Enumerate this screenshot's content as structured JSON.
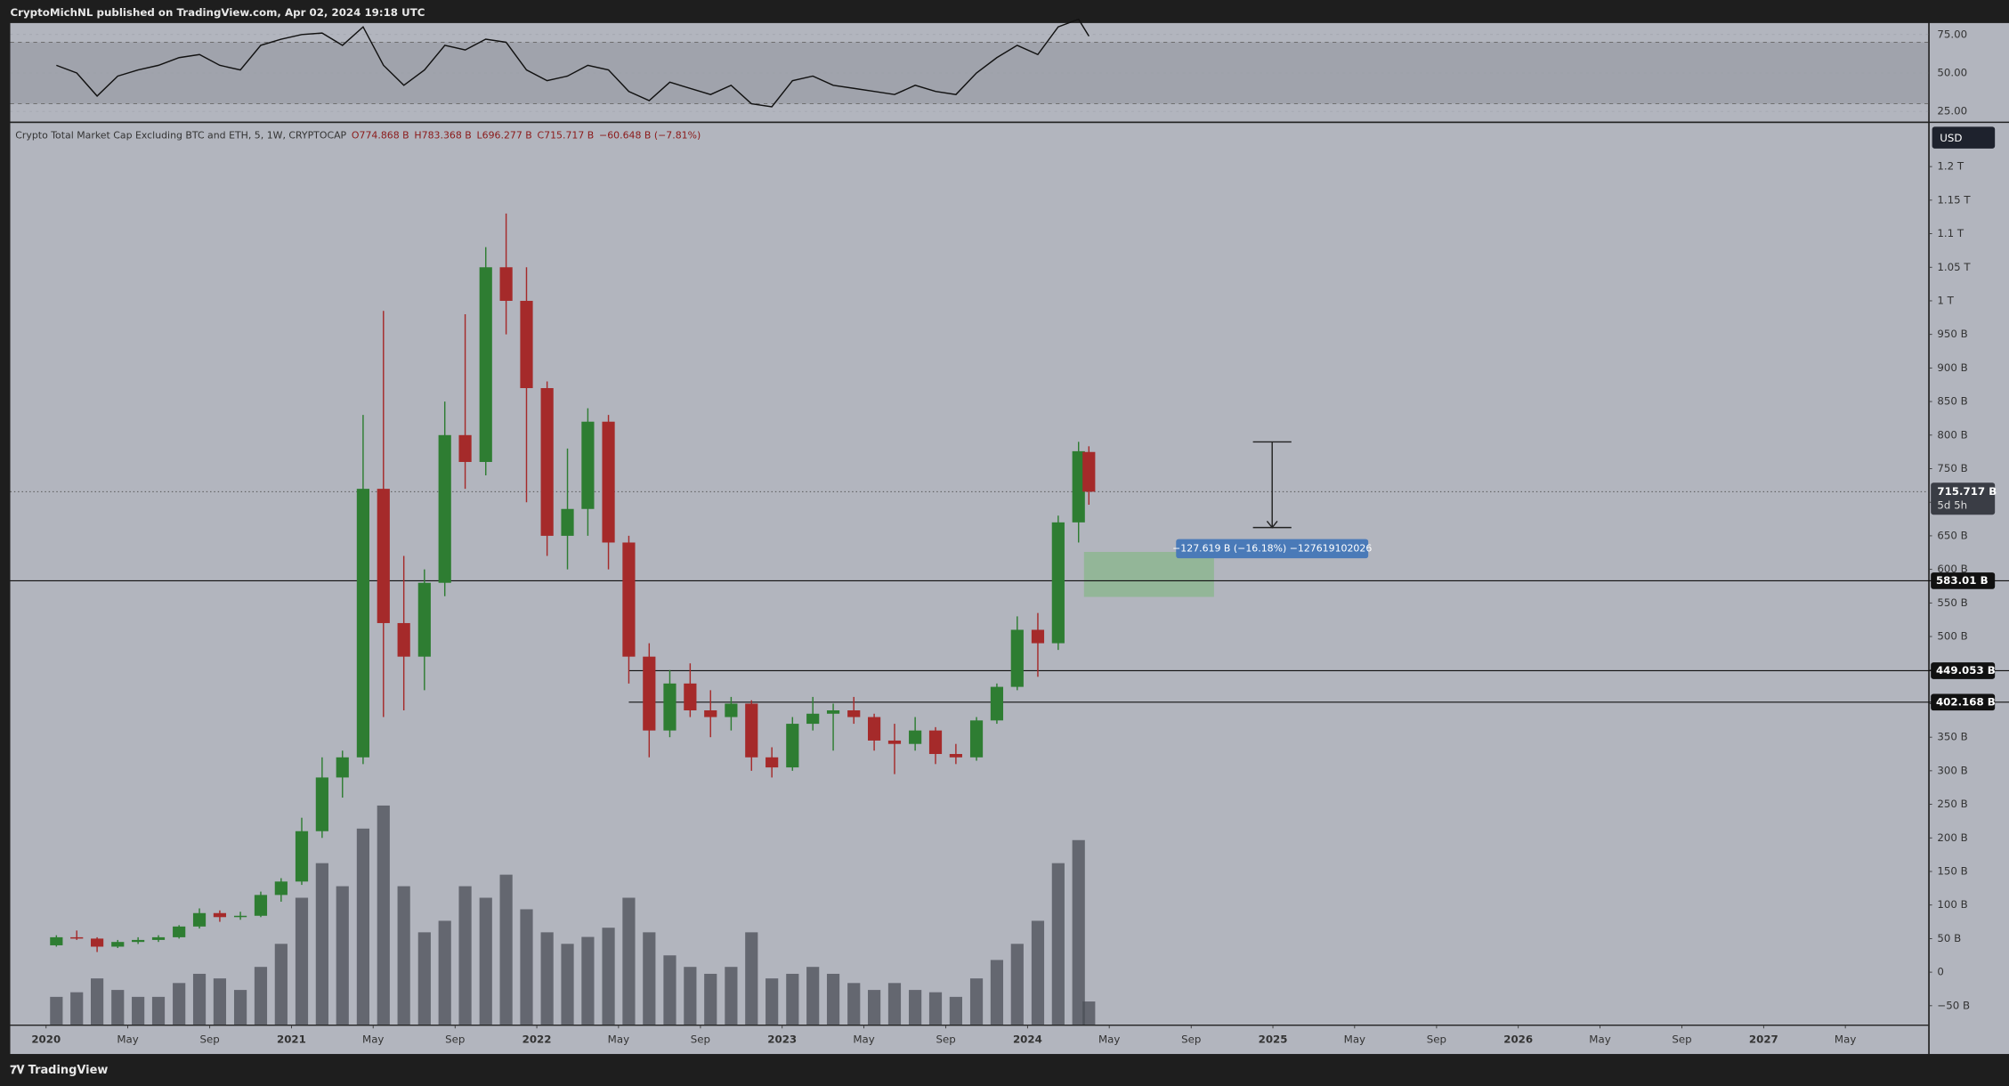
{
  "header": {
    "publisher": "CryptoMichNL published on TradingView.com, Apr 02, 2024 19:18 UTC",
    "brand": "TradingView",
    "currency": "USD"
  },
  "chart_data": [
    {
      "type": "line",
      "name": "RSI",
      "color": "#111111",
      "x": [
        2020.042,
        2020.125,
        2020.208,
        2020.292,
        2020.375,
        2020.458,
        2020.542,
        2020.625,
        2020.708,
        2020.792,
        2020.875,
        2020.958,
        2021.042,
        2021.125,
        2021.208,
        2021.292,
        2021.375,
        2021.458,
        2021.542,
        2021.625,
        2021.708,
        2021.792,
        2021.875,
        2021.958,
        2022.042,
        2022.125,
        2022.208,
        2022.292,
        2022.375,
        2022.458,
        2022.542,
        2022.625,
        2022.708,
        2022.792,
        2022.875,
        2022.958,
        2023.042,
        2023.125,
        2023.208,
        2023.292,
        2023.375,
        2023.458,
        2023.542,
        2023.625,
        2023.708,
        2023.792,
        2023.875,
        2023.958,
        2024.042,
        2024.125,
        2024.208,
        2024.25
      ],
      "values": [
        55,
        50,
        35,
        48,
        52,
        55,
        60,
        62,
        55,
        52,
        68,
        72,
        75,
        76,
        68,
        80,
        55,
        42,
        52,
        68,
        65,
        72,
        70,
        52,
        45,
        48,
        55,
        52,
        38,
        32,
        44,
        40,
        36,
        42,
        30,
        28,
        45,
        48,
        42,
        40,
        38,
        36,
        42,
        38,
        36,
        50,
        60,
        68,
        62,
        80,
        85,
        74
      ],
      "band": [
        30,
        70
      ],
      "xlim": [
        2019.854,
        2027.671
      ],
      "ylim": [
        18.3,
        82.5
      ],
      "yticks": [
        {
          "value": 25,
          "label": "25.00"
        },
        {
          "value": 50,
          "label": "50.00"
        },
        {
          "value": 75,
          "label": "75.00"
        }
      ]
    },
    {
      "type": "candlestick",
      "title": "Crypto Total Market Cap Excluding BTC and ETH, 5, 1W, CRYPTOCAP",
      "ohlc_header": [
        "O774.868 B",
        "H783.368 B",
        "L696.277 B",
        "C715.717 B",
        "−60.648 B (−7.81%)"
      ],
      "up_color": "#2e7d32",
      "down_color": "#a52a2a",
      "x": [
        2020.042,
        2020.125,
        2020.208,
        2020.292,
        2020.375,
        2020.458,
        2020.542,
        2020.625,
        2020.708,
        2020.792,
        2020.875,
        2020.958,
        2021.042,
        2021.125,
        2021.208,
        2021.292,
        2021.375,
        2021.458,
        2021.542,
        2021.625,
        2021.708,
        2021.792,
        2021.875,
        2021.958,
        2022.042,
        2022.125,
        2022.208,
        2022.292,
        2022.375,
        2022.458,
        2022.542,
        2022.625,
        2022.708,
        2022.792,
        2022.875,
        2022.958,
        2023.042,
        2023.125,
        2023.208,
        2023.292,
        2023.375,
        2023.458,
        2023.542,
        2023.625,
        2023.708,
        2023.792,
        2023.875,
        2023.958,
        2024.042,
        2024.125,
        2024.208,
        2024.25
      ],
      "open": [
        40,
        52,
        50,
        38,
        45,
        48,
        52,
        68,
        88,
        82,
        84,
        115,
        135,
        210,
        290,
        320,
        720,
        520,
        470,
        580,
        800,
        760,
        1050,
        1000,
        870,
        650,
        690,
        820,
        640,
        470,
        360,
        430,
        390,
        380,
        400,
        320,
        305,
        370,
        385,
        390,
        380,
        345,
        340,
        360,
        325,
        320,
        375,
        425,
        510,
        490,
        670,
        774.868
      ],
      "high": [
        55,
        62,
        52,
        48,
        52,
        55,
        70,
        95,
        92,
        90,
        120,
        140,
        230,
        320,
        330,
        830,
        985,
        620,
        600,
        850,
        980,
        1080,
        1130,
        1050,
        880,
        780,
        840,
        830,
        650,
        490,
        450,
        460,
        420,
        410,
        405,
        335,
        380,
        410,
        400,
        410,
        385,
        370,
        380,
        365,
        340,
        380,
        430,
        530,
        535,
        680,
        790,
        783.368
      ],
      "low": [
        38,
        48,
        30,
        36,
        42,
        45,
        50,
        65,
        75,
        78,
        82,
        105,
        130,
        200,
        260,
        310,
        380,
        390,
        420,
        560,
        720,
        740,
        950,
        700,
        620,
        600,
        650,
        600,
        430,
        320,
        350,
        380,
        350,
        360,
        300,
        290,
        300,
        360,
        330,
        370,
        330,
        295,
        330,
        310,
        310,
        315,
        370,
        420,
        440,
        480,
        640,
        696.277
      ],
      "close": [
        52,
        50,
        38,
        45,
        48,
        52,
        68,
        88,
        82,
        84,
        115,
        135,
        210,
        290,
        320,
        720,
        520,
        470,
        580,
        800,
        760,
        1050,
        1000,
        870,
        650,
        690,
        820,
        640,
        470,
        360,
        430,
        390,
        380,
        400,
        320,
        305,
        370,
        385,
        390,
        380,
        345,
        340,
        360,
        325,
        320,
        375,
        425,
        510,
        490,
        670,
        776,
        715.717
      ],
      "volume": [
        12,
        14,
        20,
        15,
        12,
        12,
        18,
        22,
        20,
        15,
        25,
        35,
        55,
        70,
        60,
        85,
        95,
        60,
        40,
        45,
        60,
        55,
        65,
        50,
        40,
        35,
        38,
        42,
        55,
        40,
        30,
        25,
        22,
        25,
        40,
        20,
        22,
        25,
        22,
        18,
        15,
        18,
        15,
        14,
        12,
        20,
        28,
        35,
        45,
        70,
        80,
        10
      ],
      "volume_ylim": [
        0,
        100
      ],
      "volume_color": "#4a4d55",
      "xlim": [
        2019.854,
        2027.671
      ],
      "ylim": [
        -78,
        1265
      ],
      "xticks": [
        {
          "value": 2020,
          "label": "2020"
        },
        {
          "value": 2020.333,
          "label": "May"
        },
        {
          "value": 2020.667,
          "label": "Sep"
        },
        {
          "value": 2021,
          "label": "2021"
        },
        {
          "value": 2021.333,
          "label": "May"
        },
        {
          "value": 2021.667,
          "label": "Sep"
        },
        {
          "value": 2022,
          "label": "2022"
        },
        {
          "value": 2022.333,
          "label": "May"
        },
        {
          "value": 2022.667,
          "label": "Sep"
        },
        {
          "value": 2023,
          "label": "2023"
        },
        {
          "value": 2023.333,
          "label": "May"
        },
        {
          "value": 2023.667,
          "label": "Sep"
        },
        {
          "value": 2024,
          "label": "2024"
        },
        {
          "value": 2024.333,
          "label": "May"
        },
        {
          "value": 2024.667,
          "label": "Sep"
        },
        {
          "value": 2025,
          "label": "2025"
        },
        {
          "value": 2025.333,
          "label": "May"
        },
        {
          "value": 2025.667,
          "label": "Sep"
        },
        {
          "value": 2026,
          "label": "2026"
        },
        {
          "value": 2026.333,
          "label": "May"
        },
        {
          "value": 2026.667,
          "label": "Sep"
        },
        {
          "value": 2027,
          "label": "2027"
        },
        {
          "value": 2027.333,
          "label": "May"
        }
      ],
      "yticks": [
        {
          "value": -50,
          "label": "−50 B"
        },
        0,
        {
          "value": 50,
          "label": "50 B"
        },
        {
          "value": 100,
          "label": "100 B"
        },
        {
          "value": 150,
          "label": "150 B"
        },
        {
          "value": 200,
          "label": "200 B"
        },
        {
          "value": 250,
          "label": "250 B"
        },
        {
          "value": 300,
          "label": "300 B"
        },
        {
          "value": 350,
          "label": "350 B"
        },
        {
          "value": 400,
          "label": "400 B"
        },
        {
          "value": 450,
          "label": "450 B"
        },
        {
          "value": 500,
          "label": "500 B"
        },
        {
          "value": 550,
          "label": "550 B"
        },
        {
          "value": 600,
          "label": "600 B"
        },
        {
          "value": 650,
          "label": "650 B"
        },
        {
          "value": 700,
          "label": "700 B"
        },
        {
          "value": 750,
          "label": "750 B"
        },
        {
          "value": 800,
          "label": "800 B"
        },
        {
          "value": 850,
          "label": "850 B"
        },
        {
          "value": 900,
          "label": "900 B"
        },
        {
          "value": 950,
          "label": "950 B"
        },
        {
          "value": 1000,
          "label": "1 T"
        },
        {
          "value": 1050,
          "label": "1.05 T"
        },
        {
          "value": 1100,
          "label": "1.1 T"
        },
        {
          "value": 1150,
          "label": "1.15 T"
        },
        {
          "value": 1200,
          "label": "1.2 T"
        }
      ],
      "levels": [
        {
          "value": 583.01,
          "label": "583.01 B"
        },
        {
          "value": 449.053,
          "label": "449.053 B"
        },
        {
          "value": 402.168,
          "label": "402.168 B"
        }
      ],
      "last_price": {
        "value": 715.717,
        "label": "715.717 B",
        "countdown": "5d 5h"
      },
      "measure": {
        "x": 2024.997,
        "start": 789.9,
        "end": 662.3,
        "label": "−127.619 B (−16.18%) −127619102026"
      },
      "zone": {
        "x": [
          2024.23,
          2024.76
        ],
        "y": [
          559,
          626
        ],
        "color": "#7fb77e"
      }
    }
  ]
}
